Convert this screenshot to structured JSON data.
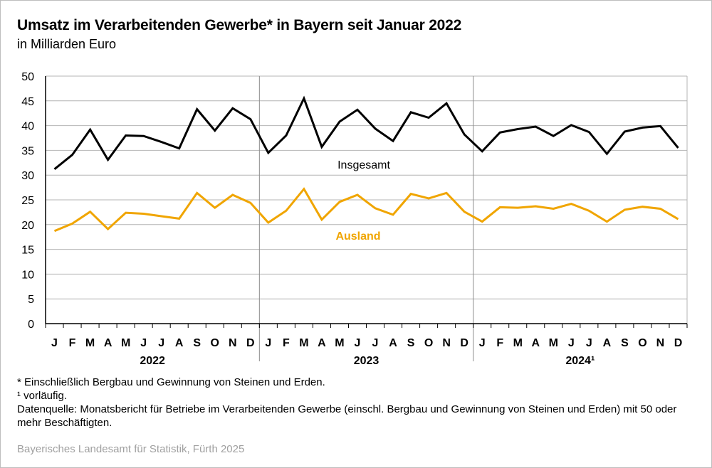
{
  "title": "Umsatz im Verarbeitenden Gewerbe* in Bayern seit Januar 2022",
  "subtitle": "in Milliarden Euro",
  "chart_data": {
    "type": "line",
    "ylim": [
      0,
      50
    ],
    "yticks": [
      "0",
      "5",
      "10",
      "15",
      "20",
      "25",
      "30",
      "35",
      "40",
      "45",
      "50"
    ],
    "months": [
      "J",
      "F",
      "M",
      "A",
      "M",
      "J",
      "J",
      "A",
      "S",
      "O",
      "N",
      "D",
      "J",
      "F",
      "M",
      "A",
      "M",
      "J",
      "J",
      "A",
      "S",
      "O",
      "N",
      "D",
      "J",
      "F",
      "M",
      "A",
      "M",
      "J",
      "J",
      "A",
      "S",
      "O",
      "N",
      "D"
    ],
    "years": [
      "2022",
      "2023",
      "2024¹"
    ],
    "grid": true,
    "series": [
      {
        "name": "Insgesamt",
        "color": "#000000",
        "values": [
          31.2,
          34.1,
          39.2,
          33.1,
          38.0,
          37.9,
          36.7,
          35.4,
          43.3,
          39.0,
          43.5,
          41.3,
          34.5,
          38.0,
          45.5,
          35.7,
          40.8,
          43.2,
          39.4,
          36.9,
          42.7,
          41.6,
          44.5,
          38.2,
          34.8,
          38.6,
          39.3,
          39.8,
          37.9,
          40.1,
          38.7,
          34.3,
          38.8,
          39.6,
          39.9,
          35.5
        ]
      },
      {
        "name": "Ausland",
        "color": "#f0a500",
        "values": [
          18.7,
          20.2,
          22.6,
          19.1,
          22.4,
          22.2,
          21.7,
          21.2,
          26.4,
          23.4,
          26.0,
          24.4,
          20.4,
          22.8,
          27.2,
          21.0,
          24.6,
          26.0,
          23.3,
          22.0,
          26.2,
          25.3,
          26.4,
          22.6,
          20.6,
          23.5,
          23.4,
          23.7,
          23.2,
          24.2,
          22.8,
          20.6,
          23.0,
          23.6,
          23.2,
          21.1
        ]
      }
    ]
  },
  "footnotes": {
    "asterisk": "* Einschließlich Bergbau und Gewinnung von Steinen und Erden.",
    "provisional": "¹  vorläufig.",
    "source": "Datenquelle: Monatsbericht für Betriebe im Verarbeitenden Gewerbe (einschl. Bergbau und Gewinnung von Steinen und Erden) mit 50 oder mehr Beschäftigten."
  },
  "publisher": "Bayerisches Landesamt für Statistik, Fürth 2025"
}
